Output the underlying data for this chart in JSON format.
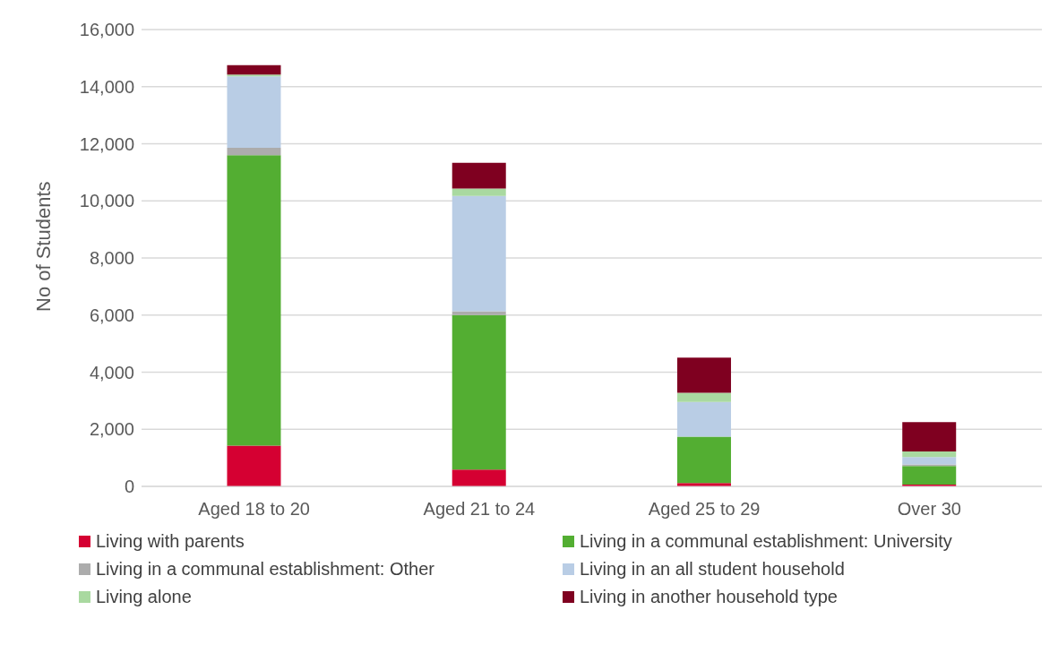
{
  "chart_data": {
    "type": "bar",
    "stacked": true,
    "ylabel": "No of Students",
    "categories": [
      "Aged 18 to 20",
      "Aged 21 to 24",
      "Aged 25 to 29",
      "Over 30"
    ],
    "series": [
      {
        "name": "Living with parents",
        "color": "#d50032",
        "values": [
          1430,
          590,
          120,
          60
        ]
      },
      {
        "name": "Living in a communal establishment: University",
        "color": "#53ae32",
        "values": [
          10170,
          5410,
          1620,
          650
        ]
      },
      {
        "name": "Living in a communal establishment: Other",
        "color": "#acacac",
        "values": [
          260,
          130,
          null,
          60
        ]
      },
      {
        "name": "Living in an all student household",
        "color": "#b9cde5",
        "values": [
          2500,
          4040,
          1220,
          260
        ]
      },
      {
        "name": "Living alone",
        "color": "#a9d9a0",
        "values": [
          60,
          260,
          320,
          190
        ]
      },
      {
        "name": "Living in another household type",
        "color": "#7f0020",
        "values": [
          330,
          900,
          1230,
          1030
        ]
      }
    ],
    "ylim": [
      0,
      16000
    ],
    "yticks": [
      0,
      {
        "value": 2000,
        "label": "2,000"
      },
      {
        "value": 4000,
        "label": "4,000"
      },
      {
        "value": 6000,
        "label": "6,000"
      },
      {
        "value": 8000,
        "label": "8,000"
      },
      {
        "value": 10000,
        "label": "10,000"
      },
      {
        "value": 12000,
        "label": "12,000"
      },
      {
        "value": 14000,
        "label": "14,000"
      },
      {
        "value": 16000,
        "label": "16,000"
      }
    ],
    "grid": "y",
    "legend": "bottom"
  }
}
